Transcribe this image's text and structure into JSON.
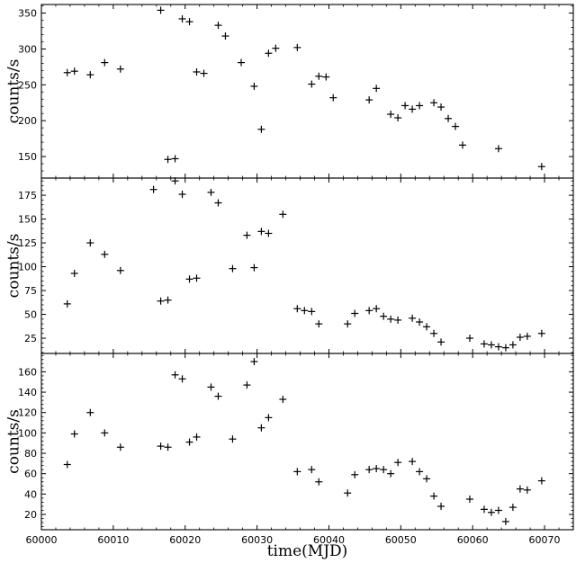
{
  "chart_data": [
    {
      "type": "scatter",
      "title": "",
      "xlabel": "",
      "ylabel": "counts/s",
      "xlim": [
        60000,
        60074
      ],
      "ylim": [
        120,
        362
      ],
      "yticks": [
        150,
        200,
        250,
        300,
        350
      ],
      "xticks": [
        60000,
        60010,
        60020,
        60030,
        60040,
        60050,
        60060,
        60070
      ],
      "show_xticklabels": false,
      "x": [
        60003.6,
        60004.6,
        60006.8,
        60008.8,
        60011.0,
        60016.6,
        60017.6,
        60018.6,
        60019.6,
        60020.6,
        60021.6,
        60022.6,
        60024.6,
        60025.6,
        60027.8,
        60029.6,
        60030.6,
        60031.6,
        60032.6,
        60035.6,
        60037.6,
        60038.6,
        60039.6,
        60040.6,
        60045.6,
        60046.6,
        60048.6,
        60049.6,
        60050.6,
        60051.6,
        60052.6,
        60054.6,
        60055.6,
        60056.6,
        60057.6,
        60058.6,
        60063.6,
        60069.6
      ],
      "y": [
        267,
        269,
        264,
        281,
        272,
        354,
        146,
        147,
        342,
        338,
        268,
        266,
        333,
        318,
        281,
        248,
        188,
        294,
        301,
        302,
        251,
        262,
        261,
        232,
        229,
        245,
        209,
        204,
        221,
        216,
        221,
        225,
        219,
        203,
        192,
        166,
        161,
        136
      ]
    },
    {
      "type": "scatter",
      "title": "",
      "xlabel": "",
      "ylabel": "counts/s",
      "xlim": [
        60000,
        60074
      ],
      "ylim": [
        9,
        193
      ],
      "yticks": [
        25,
        50,
        75,
        100,
        125,
        150,
        175
      ],
      "xticks": [
        60000,
        60010,
        60020,
        60030,
        60040,
        60050,
        60060,
        60070
      ],
      "show_xticklabels": false,
      "x": [
        60003.6,
        60004.6,
        60006.8,
        60008.8,
        60011.0,
        60015.6,
        60016.6,
        60017.6,
        60018.6,
        60019.6,
        60020.6,
        60021.6,
        60023.6,
        60024.6,
        60026.6,
        60028.6,
        60029.6,
        60030.6,
        60031.6,
        60033.6,
        60035.6,
        60036.6,
        60037.6,
        60038.6,
        60042.6,
        60043.6,
        60045.6,
        60046.6,
        60047.6,
        60048.6,
        60049.6,
        60051.6,
        60052.6,
        60053.6,
        60054.6,
        60055.6,
        60059.6,
        60061.6,
        60062.6,
        60063.6,
        60064.6,
        60065.6,
        60066.6,
        60067.6,
        60069.6
      ],
      "y": [
        61,
        93,
        125,
        113,
        96,
        181,
        64,
        65,
        190,
        176,
        87,
        88,
        178,
        167,
        98,
        133,
        99,
        137,
        135,
        155,
        56,
        54,
        53,
        40,
        40,
        51,
        54,
        56,
        48,
        45,
        44,
        46,
        42,
        37,
        30,
        21,
        25,
        19,
        18,
        16,
        15,
        18,
        26,
        27,
        30
      ]
    },
    {
      "type": "scatter",
      "title": "",
      "xlabel": "time(MJD)",
      "ylabel": "counts/s",
      "xlim": [
        60000,
        60074
      ],
      "ylim": [
        5,
        178
      ],
      "yticks": [
        20,
        40,
        60,
        80,
        100,
        120,
        140,
        160
      ],
      "xticks": [
        60000,
        60010,
        60020,
        60030,
        60040,
        60050,
        60060,
        60070
      ],
      "xticklabels": [
        "60000",
        "60010",
        "60020",
        "60030",
        "60040",
        "60050",
        "60060",
        "60070"
      ],
      "show_xticklabels": true,
      "x": [
        60003.6,
        60004.6,
        60006.8,
        60008.8,
        60011.0,
        60016.6,
        60017.6,
        60018.6,
        60019.6,
        60020.6,
        60021.6,
        60023.6,
        60024.6,
        60026.6,
        60028.6,
        60029.6,
        60030.6,
        60031.6,
        60033.6,
        60035.6,
        60037.6,
        60038.6,
        60042.6,
        60043.6,
        60045.6,
        60046.6,
        60047.6,
        60048.6,
        60049.6,
        60051.6,
        60052.6,
        60053.6,
        60054.6,
        60055.6,
        60059.6,
        60061.6,
        60062.6,
        60063.6,
        60064.6,
        60065.6,
        60066.6,
        60067.6,
        60069.6
      ],
      "y": [
        69,
        99,
        120,
        100,
        86,
        87,
        86,
        157,
        153,
        91,
        96,
        145,
        136,
        94,
        147,
        170,
        105,
        115,
        133,
        62,
        64,
        52,
        41,
        59,
        64,
        65,
        64,
        60,
        71,
        72,
        62,
        55,
        38,
        28,
        35,
        25,
        22,
        24,
        13,
        27,
        45,
        44,
        53
      ]
    }
  ]
}
